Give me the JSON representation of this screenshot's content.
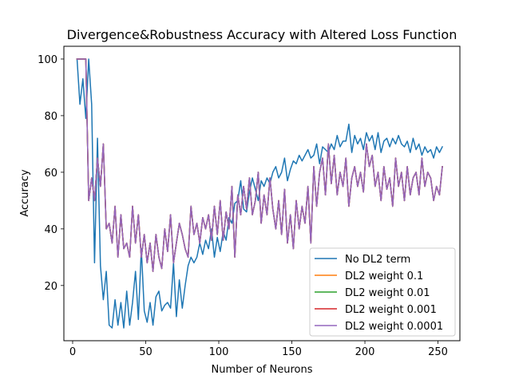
{
  "chart_data": {
    "type": "line",
    "title": "Divergence&Robustness Accuracy with Altered Loss Function",
    "xlabel": "Number of Neurons",
    "ylabel": "Accuracy",
    "xlim": [
      -6,
      265
    ],
    "ylim": [
      0.5,
      104.5
    ],
    "xticks": [
      0,
      50,
      100,
      150,
      200,
      250
    ],
    "yticks": [
      20,
      40,
      60,
      80,
      100
    ],
    "grid": false,
    "legend_position": "lower-right",
    "series": [
      {
        "name": "No DL2 term",
        "color": "#1f77b4",
        "x": [
          3,
          5,
          7,
          9,
          11,
          13,
          15,
          17,
          19,
          21,
          23,
          25,
          27,
          29,
          31,
          33,
          35,
          37,
          39,
          41,
          43,
          45,
          47,
          49,
          51,
          53,
          55,
          57,
          59,
          61,
          63,
          65,
          67,
          69,
          71,
          73,
          75,
          77,
          79,
          81,
          83,
          85,
          87,
          89,
          91,
          93,
          95,
          97,
          99,
          101,
          103,
          105,
          107,
          109,
          111,
          113,
          115,
          117,
          119,
          121,
          123,
          125,
          127,
          129,
          131,
          133,
          135,
          137,
          139,
          141,
          143,
          145,
          147,
          149,
          151,
          153,
          155,
          157,
          159,
          161,
          163,
          165,
          167,
          169,
          171,
          173,
          175,
          177,
          179,
          181,
          183,
          185,
          187,
          189,
          191,
          193,
          195,
          197,
          199,
          201,
          203,
          205,
          207,
          209,
          211,
          213,
          215,
          217,
          219,
          221,
          223,
          225,
          227,
          229,
          231,
          233,
          235,
          237,
          239,
          241,
          243,
          245,
          247,
          249,
          251,
          253
        ],
        "y": [
          100,
          84,
          93,
          79,
          100,
          84,
          28,
          72,
          27,
          15,
          25,
          6,
          5,
          15,
          6,
          14,
          5,
          18,
          6,
          14,
          25,
          8,
          33,
          11,
          7,
          14,
          6,
          16,
          18,
          11,
          13,
          14,
          12,
          28,
          9,
          22,
          12,
          20,
          27,
          30,
          28,
          30,
          35,
          31,
          36,
          33,
          40,
          30,
          37,
          32,
          39,
          36,
          44,
          42,
          49,
          50,
          57,
          47,
          46,
          53,
          58,
          54,
          50,
          57,
          55,
          58,
          56,
          60,
          62,
          58,
          60,
          65,
          57,
          61,
          64,
          63,
          66,
          64,
          66,
          68,
          65,
          66,
          70,
          63,
          69,
          68,
          67,
          70,
          68,
          73,
          69,
          71,
          71,
          77,
          67,
          73,
          70,
          72,
          68,
          74,
          71,
          73,
          68,
          74,
          67,
          71,
          72,
          69,
          72,
          70,
          73,
          70,
          69,
          71,
          67,
          72,
          68,
          70,
          66,
          69,
          67,
          68,
          65,
          69,
          67,
          69
        ]
      },
      {
        "name": "DL2 weight 0.1",
        "color": "#ff7f0e",
        "x": [
          3,
          5,
          7,
          9,
          11,
          13,
          15,
          17,
          19,
          21,
          23,
          25,
          27,
          29,
          31,
          33,
          35,
          37,
          39,
          41,
          43,
          45,
          47,
          49,
          51,
          53,
          55,
          57,
          59,
          61,
          63,
          65,
          67,
          69,
          71,
          73,
          75,
          77,
          79,
          81,
          83,
          85,
          87,
          89,
          91,
          93,
          95,
          97,
          99,
          101,
          103,
          105,
          107,
          109,
          111,
          113,
          115,
          117,
          119,
          121,
          123,
          125,
          127,
          129,
          131,
          133,
          135,
          137,
          139,
          141,
          143,
          145,
          147,
          149,
          151,
          153,
          155,
          157,
          159,
          161,
          163,
          165,
          167,
          169,
          171,
          173,
          175,
          177,
          179,
          181,
          183,
          185,
          187,
          189,
          191,
          193,
          195,
          197,
          199,
          201,
          203,
          205,
          207,
          209,
          211,
          213,
          215,
          217,
          219,
          221,
          223,
          225,
          227,
          229,
          231,
          233,
          235,
          237,
          239,
          241,
          243,
          245,
          247,
          249,
          251,
          253
        ],
        "y": [
          100,
          100,
          100,
          100,
          50,
          58,
          50,
          65,
          55,
          70,
          40,
          42,
          35,
          48,
          30,
          45,
          33,
          35,
          30,
          48,
          35,
          45,
          30,
          38,
          28,
          35,
          25,
          38,
          30,
          26,
          40,
          32,
          45,
          28,
          35,
          42,
          38,
          33,
          30,
          48,
          38,
          42,
          35,
          44,
          40,
          45,
          36,
          48,
          38,
          50,
          36,
          46,
          40,
          55,
          30,
          52,
          45,
          55,
          47,
          58,
          45,
          50,
          60,
          42,
          52,
          45,
          58,
          47,
          40,
          50,
          38,
          54,
          35,
          45,
          33,
          50,
          40,
          48,
          42,
          55,
          35,
          62,
          48,
          60,
          65,
          52,
          70,
          56,
          66,
          52,
          60,
          55,
          65,
          48,
          58,
          62,
          55,
          60,
          53,
          70,
          62,
          66,
          55,
          60,
          50,
          62,
          54,
          58,
          48,
          65,
          55,
          60,
          50,
          62,
          52,
          58,
          60,
          52,
          65,
          55,
          60,
          58,
          50,
          55,
          52,
          62
        ]
      },
      {
        "name": "DL2 weight 0.01",
        "color": "#2ca02c",
        "x": [
          3,
          5,
          7,
          9,
          11,
          13,
          15,
          17,
          19,
          21,
          23,
          25,
          27,
          29,
          31,
          33,
          35,
          37,
          39,
          41,
          43,
          45,
          47,
          49,
          51,
          53,
          55,
          57,
          59,
          61,
          63,
          65,
          67,
          69,
          71,
          73,
          75,
          77,
          79,
          81,
          83,
          85,
          87,
          89,
          91,
          93,
          95,
          97,
          99,
          101,
          103,
          105,
          107,
          109,
          111,
          113,
          115,
          117,
          119,
          121,
          123,
          125,
          127,
          129,
          131,
          133,
          135,
          137,
          139,
          141,
          143,
          145,
          147,
          149,
          151,
          153,
          155,
          157,
          159,
          161,
          163,
          165,
          167,
          169,
          171,
          173,
          175,
          177,
          179,
          181,
          183,
          185,
          187,
          189,
          191,
          193,
          195,
          197,
          199,
          201,
          203,
          205,
          207,
          209,
          211,
          213,
          215,
          217,
          219,
          221,
          223,
          225,
          227,
          229,
          231,
          233,
          235,
          237,
          239,
          241,
          243,
          245,
          247,
          249,
          251,
          253
        ],
        "y": [
          100,
          100,
          100,
          100,
          50,
          58,
          50,
          65,
          55,
          70,
          40,
          42,
          35,
          48,
          30,
          45,
          33,
          35,
          30,
          48,
          35,
          45,
          30,
          38,
          28,
          35,
          25,
          38,
          30,
          26,
          40,
          32,
          45,
          28,
          35,
          42,
          38,
          33,
          30,
          48,
          38,
          42,
          35,
          44,
          40,
          45,
          36,
          48,
          38,
          50,
          36,
          46,
          40,
          55,
          30,
          52,
          45,
          55,
          47,
          58,
          45,
          50,
          60,
          42,
          52,
          45,
          58,
          47,
          40,
          50,
          38,
          54,
          35,
          45,
          33,
          50,
          40,
          48,
          42,
          55,
          35,
          62,
          48,
          60,
          65,
          52,
          70,
          56,
          66,
          52,
          60,
          55,
          65,
          48,
          58,
          62,
          55,
          60,
          53,
          70,
          62,
          66,
          55,
          60,
          50,
          62,
          54,
          58,
          48,
          65,
          55,
          60,
          50,
          62,
          52,
          58,
          60,
          52,
          65,
          55,
          60,
          58,
          50,
          55,
          52,
          62
        ]
      },
      {
        "name": "DL2 weight 0.001",
        "color": "#d62728",
        "x": [
          3,
          5,
          7,
          9,
          11,
          13,
          15,
          17,
          19,
          21,
          23,
          25,
          27,
          29,
          31,
          33,
          35,
          37,
          39,
          41,
          43,
          45,
          47,
          49,
          51,
          53,
          55,
          57,
          59,
          61,
          63,
          65,
          67,
          69,
          71,
          73,
          75,
          77,
          79,
          81,
          83,
          85,
          87,
          89,
          91,
          93,
          95,
          97,
          99,
          101,
          103,
          105,
          107,
          109,
          111,
          113,
          115,
          117,
          119,
          121,
          123,
          125,
          127,
          129,
          131,
          133,
          135,
          137,
          139,
          141,
          143,
          145,
          147,
          149,
          151,
          153,
          155,
          157,
          159,
          161,
          163,
          165,
          167,
          169,
          171,
          173,
          175,
          177,
          179,
          181,
          183,
          185,
          187,
          189,
          191,
          193,
          195,
          197,
          199,
          201,
          203,
          205,
          207,
          209,
          211,
          213,
          215,
          217,
          219,
          221,
          223,
          225,
          227,
          229,
          231,
          233,
          235,
          237,
          239,
          241,
          243,
          245,
          247,
          249,
          251,
          253
        ],
        "y": [
          100,
          100,
          100,
          100,
          50,
          58,
          50,
          65,
          55,
          70,
          40,
          42,
          35,
          48,
          30,
          45,
          33,
          35,
          30,
          48,
          35,
          45,
          30,
          38,
          28,
          35,
          25,
          38,
          30,
          26,
          40,
          32,
          45,
          28,
          35,
          42,
          38,
          33,
          30,
          48,
          38,
          42,
          35,
          44,
          40,
          45,
          36,
          48,
          38,
          50,
          36,
          46,
          40,
          55,
          30,
          52,
          45,
          55,
          47,
          58,
          45,
          50,
          60,
          42,
          52,
          45,
          58,
          47,
          40,
          50,
          38,
          54,
          35,
          45,
          33,
          50,
          40,
          48,
          42,
          55,
          35,
          62,
          48,
          60,
          65,
          52,
          70,
          56,
          66,
          52,
          60,
          55,
          65,
          48,
          58,
          62,
          55,
          60,
          53,
          70,
          62,
          66,
          55,
          60,
          50,
          62,
          54,
          58,
          48,
          65,
          55,
          60,
          50,
          62,
          52,
          58,
          60,
          52,
          65,
          55,
          60,
          58,
          50,
          55,
          52,
          62
        ]
      },
      {
        "name": "DL2 weight 0.0001",
        "color": "#9467bd",
        "x": [
          3,
          5,
          7,
          9,
          11,
          13,
          15,
          17,
          19,
          21,
          23,
          25,
          27,
          29,
          31,
          33,
          35,
          37,
          39,
          41,
          43,
          45,
          47,
          49,
          51,
          53,
          55,
          57,
          59,
          61,
          63,
          65,
          67,
          69,
          71,
          73,
          75,
          77,
          79,
          81,
          83,
          85,
          87,
          89,
          91,
          93,
          95,
          97,
          99,
          101,
          103,
          105,
          107,
          109,
          111,
          113,
          115,
          117,
          119,
          121,
          123,
          125,
          127,
          129,
          131,
          133,
          135,
          137,
          139,
          141,
          143,
          145,
          147,
          149,
          151,
          153,
          155,
          157,
          159,
          161,
          163,
          165,
          167,
          169,
          171,
          173,
          175,
          177,
          179,
          181,
          183,
          185,
          187,
          189,
          191,
          193,
          195,
          197,
          199,
          201,
          203,
          205,
          207,
          209,
          211,
          213,
          215,
          217,
          219,
          221,
          223,
          225,
          227,
          229,
          231,
          233,
          235,
          237,
          239,
          241,
          243,
          245,
          247,
          249,
          251,
          253
        ],
        "y": [
          100,
          100,
          100,
          100,
          50,
          58,
          50,
          65,
          55,
          70,
          40,
          42,
          35,
          48,
          30,
          45,
          33,
          35,
          30,
          48,
          35,
          45,
          30,
          38,
          28,
          35,
          25,
          38,
          30,
          26,
          40,
          32,
          45,
          28,
          35,
          42,
          38,
          33,
          30,
          48,
          38,
          42,
          35,
          44,
          40,
          45,
          36,
          48,
          38,
          50,
          36,
          46,
          40,
          55,
          30,
          52,
          45,
          55,
          47,
          58,
          45,
          50,
          60,
          42,
          52,
          45,
          58,
          47,
          40,
          50,
          38,
          54,
          35,
          45,
          33,
          50,
          40,
          48,
          42,
          55,
          35,
          62,
          48,
          60,
          65,
          52,
          70,
          56,
          66,
          52,
          60,
          55,
          65,
          48,
          58,
          62,
          55,
          60,
          53,
          70,
          62,
          66,
          55,
          60,
          50,
          62,
          54,
          58,
          48,
          65,
          55,
          60,
          50,
          62,
          52,
          58,
          60,
          52,
          65,
          55,
          60,
          58,
          50,
          55,
          52,
          62
        ]
      }
    ]
  }
}
